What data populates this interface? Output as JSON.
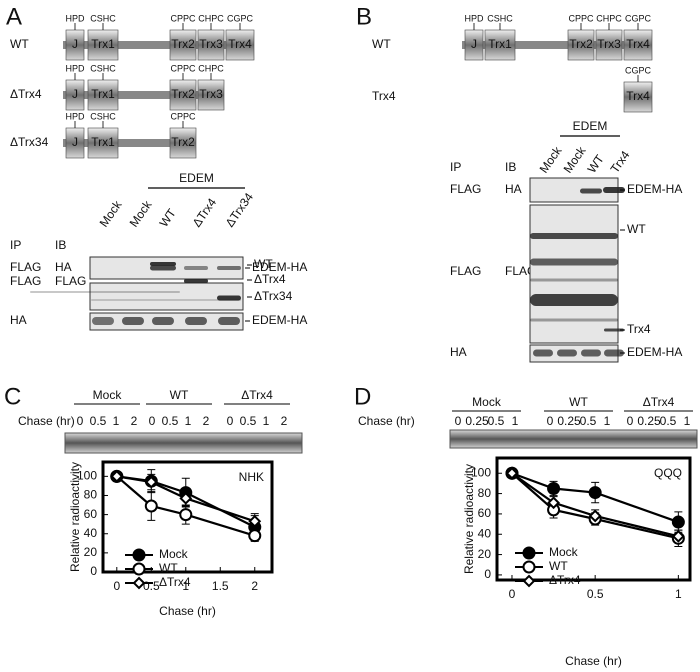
{
  "panel_a": {
    "label": "A",
    "constructs": [
      {
        "name": "WT",
        "domains": [
          "J",
          "Trx1",
          "Trx2",
          "Trx3",
          "Trx4"
        ],
        "motifs": [
          "HPD",
          "CSHC",
          "CPPC",
          "CHPC",
          "CGPC"
        ]
      },
      {
        "name": "ΔTrx4",
        "domains": [
          "J",
          "Trx1",
          "Trx2",
          "Trx3"
        ],
        "motifs": [
          "HPD",
          "CSHC",
          "CPPC",
          "CHPC"
        ]
      },
      {
        "name": "ΔTrx34",
        "domains": [
          "J",
          "Trx1",
          "Trx2"
        ],
        "motifs": [
          "HPD",
          "CSHC",
          "CPPC"
        ]
      }
    ],
    "blot": {
      "treatment": "EDEM",
      "lanes": [
        "Mock",
        "Mock",
        "WT",
        "ΔTrx4",
        "ΔTrx34"
      ],
      "headers": [
        "IP",
        "IB"
      ],
      "rows": [
        [
          "FLAG",
          "HA"
        ],
        [
          "FLAG",
          "FLAG"
        ],
        [
          "HA"
        ]
      ],
      "band_labels": [
        "EDEM-HA",
        "WT",
        "ΔTrx4",
        "ΔTrx34",
        "EDEM-HA"
      ]
    }
  },
  "panel_b": {
    "label": "B",
    "constructs": [
      {
        "name": "WT",
        "domains": [
          "J",
          "Trx1",
          "Trx2",
          "Trx3",
          "Trx4"
        ],
        "motifs": [
          "HPD",
          "CSHC",
          "CPPC",
          "CHPC",
          "CGPC"
        ]
      },
      {
        "name": "Trx4",
        "domains": [
          "Trx4"
        ],
        "motifs": [
          "CGPC"
        ]
      }
    ],
    "blot": {
      "treatment": "EDEM",
      "lanes": [
        "Mock",
        "Mock",
        "WT",
        "Trx4"
      ],
      "headers": [
        "IP",
        "IB"
      ],
      "rows": [
        [
          "FLAG",
          "HA"
        ],
        [
          "FLAG",
          "FLAG"
        ],
        [
          "HA"
        ]
      ],
      "band_labels": [
        "EDEM-HA",
        "WT",
        "Trx4",
        "EDEM-HA"
      ]
    }
  },
  "panel_c": {
    "label": "C",
    "lane_groups": [
      "Mock",
      "WT",
      "ΔTrx4"
    ],
    "lane_axis": "Chase (hr)",
    "times": [
      "0",
      "0.5",
      "1",
      "2"
    ]
  },
  "panel_d": {
    "label": "D",
    "lane_groups": [
      "Mock",
      "WT",
      "ΔTrx4"
    ],
    "lane_axis": "Chase (hr)",
    "times": [
      "0",
      "0.25",
      "0.5",
      "1"
    ]
  },
  "chart_data": [
    {
      "type": "line",
      "annotation": "NHK",
      "xlabel": "Chase (hr)",
      "ylabel": "Relative radioactivity",
      "x": [
        0,
        0.5,
        1,
        2
      ],
      "xlim": [
        -0.2,
        2.25
      ],
      "xticks": [
        0,
        0.5,
        1,
        1.5,
        2
      ],
      "ylim": [
        0,
        115
      ],
      "yticks": [
        0,
        20,
        40,
        60,
        80,
        100
      ],
      "series": [
        {
          "name": "Mock",
          "color": "#000000",
          "marker": "circle-filled",
          "values": [
            100,
            95,
            83,
            47
          ],
          "errors": [
            0,
            12,
            15,
            12
          ]
        },
        {
          "name": "WT",
          "color": "#000000",
          "marker": "circle-open",
          "values": [
            100,
            69,
            60,
            38
          ],
          "errors": [
            0,
            15,
            10,
            6
          ]
        },
        {
          "name": "ΔTrx4",
          "color": "#000000",
          "marker": "diamond-open",
          "values": [
            100,
            94,
            77,
            53
          ],
          "errors": [
            0,
            8,
            8,
            8
          ]
        }
      ]
    },
    {
      "type": "line",
      "annotation": "QQQ",
      "xlabel": "Chase (hr)",
      "ylabel": "Relative radioactivity",
      "x": [
        0,
        0.25,
        0.5,
        1
      ],
      "xlim": [
        -0.09,
        1.07
      ],
      "xticks": [
        0,
        0.5,
        1
      ],
      "ylim": [
        -5,
        115
      ],
      "yticks": [
        0,
        20,
        40,
        60,
        80,
        100
      ],
      "series": [
        {
          "name": "Mock",
          "color": "#000000",
          "marker": "circle-filled",
          "values": [
            100,
            85,
            81,
            52
          ],
          "errors": [
            0,
            7,
            10,
            10
          ]
        },
        {
          "name": "WT",
          "color": "#000000",
          "marker": "circle-open",
          "values": [
            100,
            64,
            55,
            36
          ],
          "errors": [
            0,
            8,
            6,
            8
          ]
        },
        {
          "name": "ΔTrx4",
          "color": "#000000",
          "marker": "diamond-open",
          "values": [
            100,
            71,
            58,
            38
          ],
          "errors": [
            0,
            6,
            6,
            6
          ]
        }
      ]
    }
  ]
}
